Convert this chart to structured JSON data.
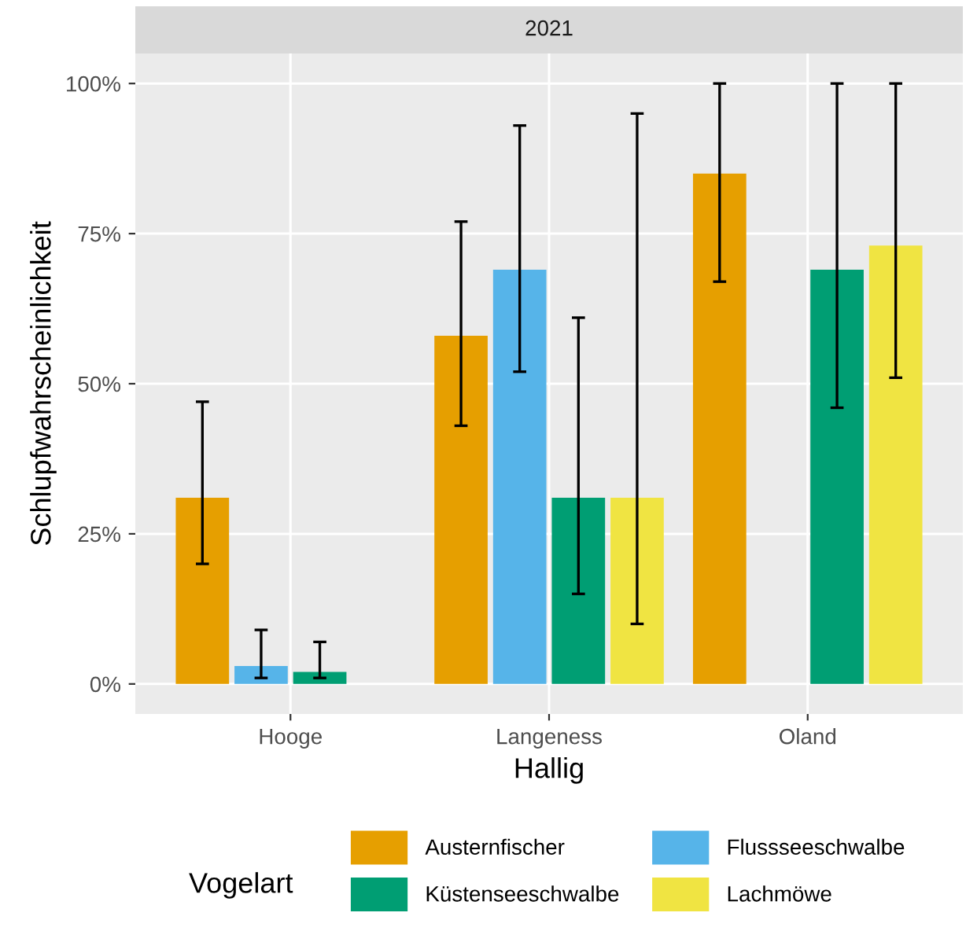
{
  "chart_data": {
    "type": "bar",
    "title": "2021",
    "xlabel": "Hallig",
    "ylabel": "Schlupfwahrscheinlichkeit",
    "legend_title": "Vogelart",
    "categories": [
      "Hooge",
      "Langeness",
      "Oland"
    ],
    "series": [
      {
        "name": "Austernfischer",
        "color": "#e69f00",
        "values": [
          31,
          58,
          85
        ],
        "errors": [
          [
            20,
            47
          ],
          [
            43,
            77
          ],
          [
            67,
            100
          ]
        ]
      },
      {
        "name": "Flussseeschwalbe",
        "color": "#56b4e9",
        "values": [
          3,
          69,
          null
        ],
        "errors": [
          [
            1,
            9
          ],
          [
            52,
            93
          ],
          null
        ]
      },
      {
        "name": "Küstenseeschwalbe",
        "color": "#009e73",
        "values": [
          2,
          31,
          69
        ],
        "errors": [
          [
            1,
            7
          ],
          [
            15,
            61
          ],
          [
            46,
            100
          ]
        ]
      },
      {
        "name": "Lachmöwe",
        "color": "#f0e442",
        "values": [
          null,
          31,
          73
        ],
        "errors": [
          null,
          [
            10,
            95
          ],
          [
            51,
            100
          ]
        ]
      }
    ],
    "ylim": [
      -5,
      105
    ],
    "yticks": [
      {
        "value": 0,
        "label": "0%"
      },
      {
        "value": 25,
        "label": "25%"
      },
      {
        "value": 50,
        "label": "50%"
      },
      {
        "value": 75,
        "label": "75%"
      },
      {
        "value": 100,
        "label": "100%"
      }
    ],
    "grid": true,
    "legend": "bottom"
  }
}
